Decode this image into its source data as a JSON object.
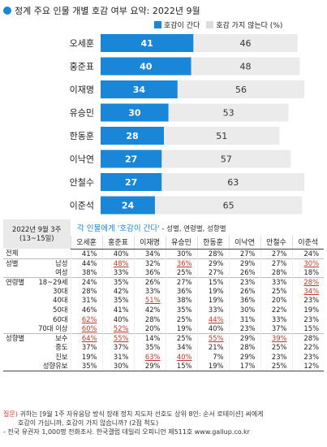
{
  "header": {
    "title": "정계 주요 인물 개별 호감 여부 요약: 2022년 9월",
    "legend_like": "호감이 간다",
    "legend_dislike": "호감 가지 않는다 (%)"
  },
  "colors": {
    "like": "#1a86d8",
    "dislike": "#ebebeb",
    "accent_dot": "#1a86d8",
    "underline": "#c0392b"
  },
  "chart_data": [
    {
      "type": "bar",
      "stacked": "horizontal",
      "categories": [
        "오세훈",
        "홍준표",
        "이재명",
        "유승민",
        "한동훈",
        "이낙연",
        "안철수",
        "이준석"
      ],
      "series": [
        {
          "name": "호감이 간다",
          "values": [
            41,
            40,
            34,
            30,
            28,
            27,
            27,
            24
          ]
        },
        {
          "name": "호감 가지 않는다",
          "values": [
            46,
            48,
            56,
            53,
            51,
            57,
            63,
            65
          ]
        }
      ],
      "title": "정계 주요 인물 개별 호감 여부 요약: 2022년 9월",
      "xlabel": "",
      "ylabel": "",
      "xlim": [
        0,
        100
      ]
    },
    {
      "type": "table",
      "title": "각 인물에게 '호감이 간다' - 성별, 연령별, 성향별",
      "corner": "2022년 9월 3주\n(13~15일)",
      "columns": [
        "오세훈",
        "홍준표",
        "이재명",
        "유승민",
        "한동훈",
        "이낙연",
        "안철수",
        "이준석"
      ],
      "rows": [
        {
          "cat": "전체",
          "sub": "",
          "values": [
            "41%",
            "40%",
            "34%",
            "30%",
            "28%",
            "27%",
            "27%",
            "24%"
          ],
          "underline": []
        },
        {
          "cat": "성별",
          "sub": "남성",
          "values": [
            "44%",
            "48%",
            "32%",
            "36%",
            "29%",
            "29%",
            "27%",
            "30%"
          ],
          "underline": [
            1,
            3,
            7
          ]
        },
        {
          "cat": "",
          "sub": "여성",
          "values": [
            "38%",
            "33%",
            "36%",
            "25%",
            "27%",
            "26%",
            "28%",
            "18%"
          ],
          "underline": []
        },
        {
          "cat": "연령별",
          "sub": "18~29세",
          "values": [
            "24%",
            "35%",
            "26%",
            "27%",
            "15%",
            "23%",
            "33%",
            "28%"
          ],
          "underline": [
            7
          ]
        },
        {
          "cat": "",
          "sub": "30대",
          "values": [
            "28%",
            "42%",
            "33%",
            "36%",
            "19%",
            "26%",
            "25%",
            "34%"
          ],
          "underline": [
            7
          ]
        },
        {
          "cat": "",
          "sub": "40대",
          "values": [
            "31%",
            "35%",
            "51%",
            "38%",
            "19%",
            "36%",
            "20%",
            "23%"
          ],
          "underline": [
            2
          ]
        },
        {
          "cat": "",
          "sub": "50대",
          "values": [
            "46%",
            "41%",
            "42%",
            "35%",
            "33%",
            "30%",
            "22%",
            "19%"
          ],
          "underline": []
        },
        {
          "cat": "",
          "sub": "60대",
          "values": [
            "62%",
            "40%",
            "28%",
            "25%",
            "44%",
            "31%",
            "33%",
            "23%"
          ],
          "underline": [
            0,
            4
          ]
        },
        {
          "cat": "",
          "sub": "70대 이상",
          "values": [
            "60%",
            "52%",
            "20%",
            "19%",
            "40%",
            "23%",
            "37%",
            "15%"
          ],
          "underline": [
            0,
            1
          ]
        },
        {
          "cat": "성향별",
          "sub": "보수",
          "values": [
            "64%",
            "55%",
            "14%",
            "25%",
            "55%",
            "29%",
            "39%",
            "28%"
          ],
          "underline": [
            0,
            1,
            4,
            6
          ]
        },
        {
          "cat": "",
          "sub": "중도",
          "values": [
            "37%",
            "37%",
            "35%",
            "34%",
            "21%",
            "28%",
            "25%",
            "22%"
          ],
          "underline": []
        },
        {
          "cat": "",
          "sub": "진보",
          "values": [
            "19%",
            "31%",
            "63%",
            "40%",
            "7%",
            "29%",
            "23%",
            "23%"
          ],
          "underline": [
            2,
            3
          ]
        },
        {
          "cat": "",
          "sub": "성향유보",
          "values": [
            "35%",
            "30%",
            "29%",
            "15%",
            "19%",
            "17%",
            "25%",
            "12%"
          ],
          "underline": []
        }
      ]
    }
  ],
  "footer": {
    "question_label": "질문)",
    "question_text": "귀하는 [9월 1주 자유응답 방식 장래 정치 지도자 선호도 상위 8인: 순서 로테이션] 씨에게",
    "question_text2": "호감이 가십니까, 호감이 가지 않습니까? (2점 척도)",
    "source": "- 전국 유권자 1,000명 전화조사. 한국갤럽 데일리 오피니언 제511호 www.gallup.co.kr"
  }
}
